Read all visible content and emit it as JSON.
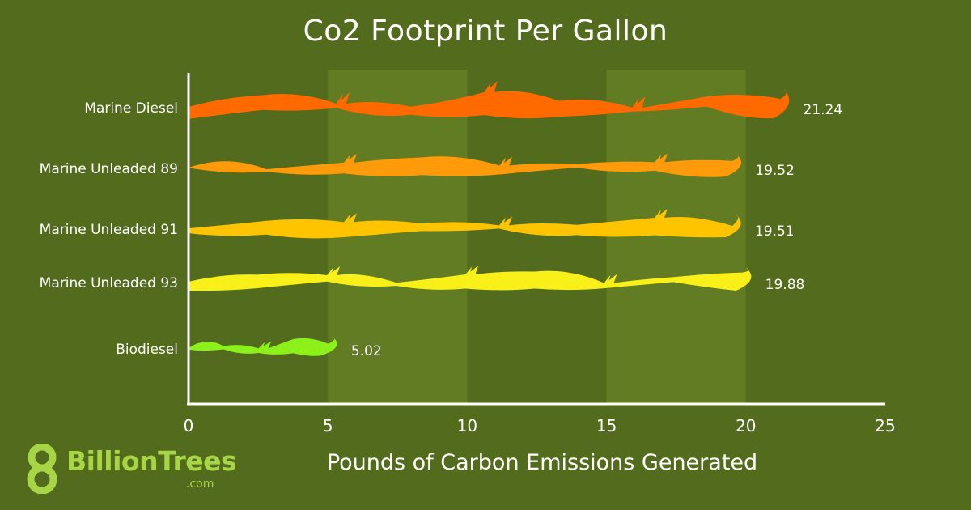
{
  "chart_data": {
    "type": "bar",
    "title": "Co2 Footprint Per Gallon",
    "xlabel": "Pounds of Carbon Emissions Generated",
    "ylabel": "",
    "xlim": [
      0,
      25
    ],
    "xticks": [
      "0",
      "5",
      "10",
      "15",
      "20",
      "25"
    ],
    "orientation": "horizontal",
    "categories": [
      "Marine Diesel",
      "Marine Unleaded 89",
      "Marine Unleaded 91",
      "Marine Unleaded 93",
      "Biodiesel"
    ],
    "values": [
      21.24,
      19.52,
      19.51,
      19.88,
      5.02
    ],
    "value_labels": [
      "21.24",
      "19.52",
      "19.51",
      "19.88",
      "5.02"
    ],
    "colors": [
      "#ff6a00",
      "#ff9a0a",
      "#ffc400",
      "#f8f018",
      "#8cf01a"
    ],
    "band_color": "#617c22",
    "shaded_bands": [
      [
        5,
        10
      ],
      [
        15,
        20
      ]
    ]
  },
  "logo": {
    "name": "BillionTrees",
    "digit": "8",
    "suffix": ".com",
    "color": "#a8d545"
  },
  "background_color": "#536b1c"
}
